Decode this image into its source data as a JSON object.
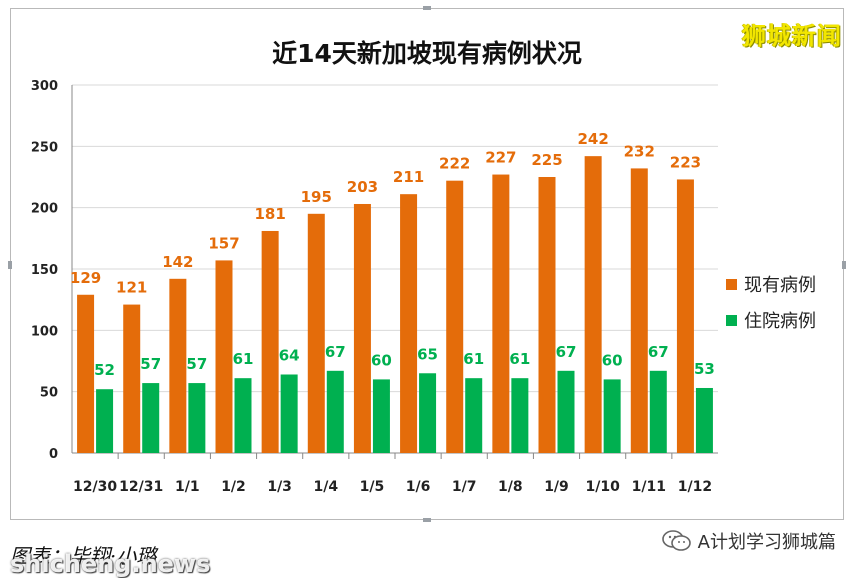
{
  "brand": "狮城新闻",
  "footer": {
    "credit": "图表：毕翔·小璐",
    "account": "A计划学习狮城篇",
    "watermark": "shicheng.news"
  },
  "colors": {
    "orange": "#e46c0a",
    "green": "#00b050"
  },
  "chart_data": {
    "type": "bar",
    "title": "近14天新加坡现有病例状况",
    "categories": [
      "12/30",
      "12/31",
      "1/1",
      "1/2",
      "1/3",
      "1/4",
      "1/5",
      "1/6",
      "1/7",
      "1/8",
      "1/9",
      "1/10",
      "1/11",
      "1/12"
    ],
    "series": [
      {
        "name": "现有病例",
        "color": "#e46c0a",
        "values": [
          129,
          121,
          142,
          157,
          181,
          195,
          203,
          211,
          222,
          227,
          225,
          242,
          232,
          223
        ]
      },
      {
        "name": "住院病例",
        "color": "#00b050",
        "values": [
          52,
          57,
          57,
          61,
          64,
          67,
          60,
          65,
          61,
          61,
          67,
          60,
          67,
          53
        ]
      }
    ],
    "yticks": [
      0,
      50,
      100,
      150,
      200,
      250,
      300
    ],
    "ylim": [
      0,
      300
    ],
    "grid": true,
    "legend_position": "right"
  }
}
